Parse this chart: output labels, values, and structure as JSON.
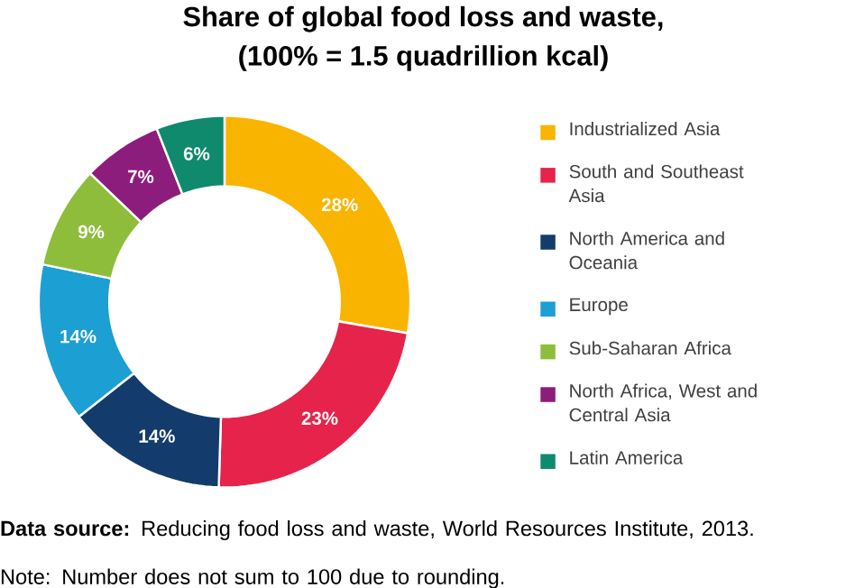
{
  "chart_data": {
    "type": "donut",
    "title": "Share of global food loss and waste,",
    "subtitle": "(100% = 1.5 quadrillion kcal)",
    "categories": [
      "Industrialized Asia",
      "South and Southeast Asia",
      "North America and Oceania",
      "Europe",
      "Sub-Saharan Africa",
      "North Africa, West and Central Asia",
      "Latin America"
    ],
    "values": [
      28,
      23,
      14,
      14,
      9,
      7,
      6
    ],
    "value_labels": [
      "28%",
      "23%",
      "14%",
      "14%",
      "9%",
      "7%",
      "6%"
    ],
    "colors": [
      "#f9b400",
      "#e6234a",
      "#133b6b",
      "#1c9fd3",
      "#8ebd3b",
      "#8c1d7d",
      "#0f8a6d"
    ],
    "legend": "right",
    "annotations": [
      "**Data source:** Reducing food loss and waste, World Resources Institute, 2013.",
      "Note: Number does not sum to 100 due to rounding."
    ]
  }
}
